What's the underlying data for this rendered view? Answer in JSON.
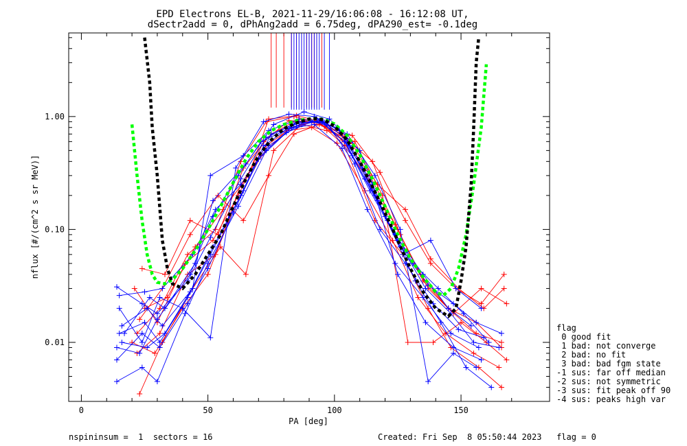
{
  "chart_data": {
    "type": "line",
    "title_line1": "EPD Electrons EL-B, 2021-11-29/16:06:08 - 16:12:08 UT,",
    "title_line2": "dSectr2add = 0, dPhAng2add = 6.75deg, dPA290_est=  -0.1deg",
    "xlabel": "PA [deg]",
    "ylabel": "nflux [#/(cm^2 s sr MeV)]",
    "xlim": [
      -5,
      185
    ],
    "ylim": [
      0.003,
      5.5
    ],
    "yscale": "log",
    "xticks": [
      0,
      50,
      100,
      150
    ],
    "xtick_labels": [
      "0",
      "50",
      "100",
      "150"
    ],
    "yticks": [
      0.01,
      0.1,
      1.0
    ],
    "ytick_labels": [
      "0.01",
      "0.10",
      "1.00"
    ],
    "colors": {
      "blue": "#0000ff",
      "red": "#ff0000",
      "black": "#000000",
      "green": "#00ff00"
    },
    "fit_black_dashed": [
      [
        25,
        5.0
      ],
      [
        27,
        2.0
      ],
      [
        28,
        0.8
      ],
      [
        30,
        0.3
      ],
      [
        32,
        0.08
      ],
      [
        34,
        0.045
      ],
      [
        36,
        0.033
      ],
      [
        40,
        0.03
      ],
      [
        45,
        0.04
      ],
      [
        50,
        0.06
      ],
      [
        55,
        0.09
      ],
      [
        60,
        0.16
      ],
      [
        65,
        0.28
      ],
      [
        70,
        0.45
      ],
      [
        75,
        0.62
      ],
      [
        80,
        0.78
      ],
      [
        85,
        0.88
      ],
      [
        90,
        0.95
      ],
      [
        93,
        0.96
      ],
      [
        96,
        0.93
      ],
      [
        100,
        0.82
      ],
      [
        105,
        0.62
      ],
      [
        110,
        0.4
      ],
      [
        115,
        0.24
      ],
      [
        120,
        0.14
      ],
      [
        125,
        0.08
      ],
      [
        130,
        0.045
      ],
      [
        135,
        0.028
      ],
      [
        140,
        0.02
      ],
      [
        145,
        0.017
      ],
      [
        148,
        0.02
      ],
      [
        150,
        0.035
      ],
      [
        152,
        0.07
      ],
      [
        154,
        0.25
      ],
      [
        155,
        0.8
      ],
      [
        156,
        3.0
      ],
      [
        157,
        5.0
      ]
    ],
    "fit_green_dashed": [
      [
        20,
        0.85
      ],
      [
        22,
        0.3
      ],
      [
        24,
        0.12
      ],
      [
        26,
        0.06
      ],
      [
        28,
        0.04
      ],
      [
        30,
        0.034
      ],
      [
        33,
        0.033
      ],
      [
        36,
        0.036
      ],
      [
        40,
        0.045
      ],
      [
        45,
        0.065
      ],
      [
        50,
        0.1
      ],
      [
        55,
        0.16
      ],
      [
        60,
        0.26
      ],
      [
        65,
        0.42
      ],
      [
        70,
        0.6
      ],
      [
        75,
        0.75
      ],
      [
        80,
        0.85
      ],
      [
        85,
        0.92
      ],
      [
        90,
        0.95
      ],
      [
        93,
        0.96
      ],
      [
        96,
        0.94
      ],
      [
        100,
        0.86
      ],
      [
        105,
        0.68
      ],
      [
        110,
        0.46
      ],
      [
        115,
        0.28
      ],
      [
        120,
        0.16
      ],
      [
        125,
        0.09
      ],
      [
        130,
        0.055
      ],
      [
        135,
        0.038
      ],
      [
        140,
        0.028
      ],
      [
        143,
        0.026
      ],
      [
        146,
        0.03
      ],
      [
        149,
        0.045
      ],
      [
        152,
        0.09
      ],
      [
        155,
        0.25
      ],
      [
        158,
        0.8
      ],
      [
        160,
        2.9
      ]
    ],
    "blue_traces": [
      [
        [
          14,
          0.031
        ],
        [
          24,
          0.022
        ],
        [
          30,
          0.018
        ],
        [
          42,
          0.035
        ],
        [
          51,
          0.085
        ],
        [
          63,
          0.28
        ],
        [
          73,
          0.65
        ],
        [
          85,
          0.88
        ],
        [
          95,
          0.9
        ],
        [
          106,
          0.55
        ],
        [
          116,
          0.2
        ],
        [
          126,
          0.07
        ],
        [
          137,
          0.032
        ],
        [
          147,
          0.022
        ],
        [
          156,
          0.015
        ],
        [
          166,
          0.012
        ]
      ],
      [
        [
          15,
          0.012
        ],
        [
          25,
          0.015
        ],
        [
          31,
          0.01
        ],
        [
          42,
          0.025
        ],
        [
          51,
          0.06
        ],
        [
          63,
          0.2
        ],
        [
          72,
          0.55
        ],
        [
          84,
          0.85
        ],
        [
          94,
          0.92
        ],
        [
          104,
          0.6
        ],
        [
          114,
          0.22
        ],
        [
          125,
          0.08
        ],
        [
          136,
          0.03
        ],
        [
          146,
          0.018
        ],
        [
          155,
          0.01
        ],
        [
          165,
          0.009
        ]
      ],
      [
        [
          14,
          0.0045
        ],
        [
          24,
          0.006
        ],
        [
          30,
          0.0045
        ],
        [
          41,
          0.018
        ],
        [
          50,
          0.05
        ],
        [
          62,
          0.16
        ],
        [
          73,
          0.5
        ],
        [
          83,
          0.8
        ],
        [
          93,
          0.95
        ],
        [
          105,
          0.7
        ],
        [
          116,
          0.3
        ],
        [
          126,
          0.1
        ],
        [
          137,
          0.0045
        ],
        [
          147,
          0.008
        ],
        [
          156,
          0.006
        ]
      ],
      [
        [
          15,
          0.02
        ],
        [
          24,
          0.01
        ],
        [
          31,
          0.025
        ],
        [
          40,
          0.02
        ],
        [
          51,
          0.011
        ],
        [
          61,
          0.35
        ],
        [
          72,
          0.9
        ],
        [
          82,
          1.05
        ],
        [
          92,
          1.0
        ],
        [
          102,
          0.75
        ],
        [
          112,
          0.28
        ],
        [
          124,
          0.09
        ],
        [
          135,
          0.04
        ],
        [
          145,
          0.02
        ],
        [
          154,
          0.014
        ]
      ],
      [
        [
          14,
          0.009
        ],
        [
          23,
          0.008
        ],
        [
          30,
          0.016
        ],
        [
          43,
          0.04
        ],
        [
          52,
          0.13
        ],
        [
          62,
          0.3
        ],
        [
          71,
          0.6
        ],
        [
          82,
          0.78
        ],
        [
          92,
          0.85
        ],
        [
          103,
          0.52
        ],
        [
          113,
          0.15
        ],
        [
          124,
          0.05
        ],
        [
          135,
          0.025
        ],
        [
          146,
          0.012
        ],
        [
          157,
          0.009
        ]
      ],
      [
        [
          16,
          0.014
        ],
        [
          26,
          0.02
        ],
        [
          32,
          0.014
        ],
        [
          44,
          0.03
        ],
        [
          51,
          0.3
        ],
        [
          64,
          0.45
        ],
        [
          74,
          0.75
        ],
        [
          86,
          0.95
        ],
        [
          96,
          0.88
        ],
        [
          107,
          0.45
        ],
        [
          117,
          0.18
        ],
        [
          127,
          0.06
        ],
        [
          138,
          0.08
        ],
        [
          148,
          0.03
        ],
        [
          158,
          0.02
        ]
      ],
      [
        [
          14,
          0.007
        ],
        [
          24,
          0.012
        ],
        [
          31,
          0.009
        ],
        [
          42,
          0.022
        ],
        [
          50,
          0.045
        ],
        [
          60,
          0.14
        ],
        [
          70,
          0.42
        ],
        [
          81,
          0.72
        ],
        [
          91,
          0.9
        ],
        [
          101,
          0.8
        ],
        [
          111,
          0.35
        ],
        [
          121,
          0.12
        ],
        [
          131,
          0.05
        ],
        [
          141,
          0.03
        ],
        [
          151,
          0.018
        ],
        [
          161,
          0.01
        ]
      ],
      [
        [
          17,
          0.012
        ],
        [
          27,
          0.025
        ],
        [
          33,
          0.02
        ],
        [
          45,
          0.05
        ],
        [
          52,
          0.18
        ],
        [
          65,
          0.38
        ],
        [
          76,
          0.85
        ],
        [
          88,
          1.1
        ],
        [
          98,
          0.95
        ],
        [
          110,
          0.5
        ],
        [
          120,
          0.13
        ],
        [
          132,
          0.035
        ],
        [
          142,
          0.015
        ],
        [
          152,
          0.006
        ],
        [
          162,
          0.004
        ]
      ],
      [
        [
          15,
          0.026
        ],
        [
          25,
          0.028
        ],
        [
          32,
          0.03
        ],
        [
          44,
          0.06
        ],
        [
          53,
          0.15
        ],
        [
          63,
          0.25
        ],
        [
          74,
          0.55
        ],
        [
          85,
          0.82
        ],
        [
          95,
          0.93
        ],
        [
          105,
          0.62
        ],
        [
          115,
          0.25
        ],
        [
          125,
          0.04
        ],
        [
          136,
          0.015
        ],
        [
          147,
          0.009
        ],
        [
          158,
          0.007
        ]
      ],
      [
        [
          16,
          0.01
        ],
        [
          26,
          0.009
        ],
        [
          33,
          0.012
        ],
        [
          43,
          0.028
        ],
        [
          52,
          0.07
        ],
        [
          64,
          0.22
        ],
        [
          75,
          0.7
        ],
        [
          86,
          0.9
        ],
        [
          97,
          0.88
        ],
        [
          108,
          0.38
        ],
        [
          118,
          0.1
        ],
        [
          128,
          0.05
        ],
        [
          139,
          0.022
        ],
        [
          149,
          0.013
        ],
        [
          159,
          0.011
        ]
      ]
    ],
    "red_traces": [
      [
        [
          24,
          0.045
        ],
        [
          33,
          0.04
        ],
        [
          43,
          0.12
        ],
        [
          54,
          0.09
        ],
        [
          64,
          0.35
        ],
        [
          75,
          0.7
        ],
        [
          86,
          0.95
        ],
        [
          96,
          0.82
        ],
        [
          107,
          0.68
        ],
        [
          118,
          0.32
        ],
        [
          128,
          0.12
        ],
        [
          138,
          0.05
        ],
        [
          148,
          0.03
        ],
        [
          158,
          0.022
        ],
        [
          167,
          0.04
        ]
      ],
      [
        [
          22,
          0.012
        ],
        [
          31,
          0.02
        ],
        [
          42,
          0.06
        ],
        [
          53,
          0.1
        ],
        [
          63,
          0.4
        ],
        [
          73,
          0.9
        ],
        [
          84,
          1.0
        ],
        [
          94,
          0.88
        ],
        [
          104,
          0.55
        ],
        [
          116,
          0.12
        ],
        [
          127,
          0.06
        ],
        [
          137,
          0.02
        ],
        [
          146,
          0.009
        ],
        [
          157,
          0.006
        ],
        [
          166,
          0.004
        ]
      ],
      [
        [
          23,
          0.0035
        ],
        [
          32,
          0.01
        ],
        [
          44,
          0.03
        ],
        [
          55,
          0.07
        ],
        [
          65,
          0.04
        ],
        [
          76,
          0.5
        ],
        [
          87,
          0.85
        ],
        [
          97,
          0.75
        ],
        [
          108,
          0.6
        ],
        [
          119,
          0.2
        ],
        [
          129,
          0.01
        ],
        [
          139,
          0.01
        ],
        [
          150,
          0.015
        ],
        [
          160,
          0.01
        ],
        [
          168,
          0.007
        ]
      ],
      [
        [
          21,
          0.03
        ],
        [
          30,
          0.015
        ],
        [
          41,
          0.05
        ],
        [
          52,
          0.08
        ],
        [
          62,
          0.2
        ],
        [
          72,
          0.6
        ],
        [
          82,
          0.92
        ],
        [
          92,
          0.9
        ],
        [
          103,
          0.7
        ],
        [
          114,
          0.3
        ],
        [
          125,
          0.1
        ],
        [
          135,
          0.035
        ],
        [
          145,
          0.02
        ],
        [
          156,
          0.015
        ],
        [
          166,
          0.009
        ]
      ],
      [
        [
          25,
          0.02
        ],
        [
          34,
          0.025
        ],
        [
          45,
          0.07
        ],
        [
          56,
          0.15
        ],
        [
          66,
          0.3
        ],
        [
          74,
          0.95
        ],
        [
          85,
          1.02
        ],
        [
          95,
          0.9
        ],
        [
          106,
          0.62
        ],
        [
          117,
          0.25
        ],
        [
          128,
          0.15
        ],
        [
          138,
          0.055
        ],
        [
          149,
          0.03
        ],
        [
          159,
          0.02
        ],
        [
          167,
          0.03
        ]
      ],
      [
        [
          20,
          0.01
        ],
        [
          29,
          0.008
        ],
        [
          40,
          0.02
        ],
        [
          50,
          0.04
        ],
        [
          60,
          0.15
        ],
        [
          71,
          0.45
        ],
        [
          81,
          0.75
        ],
        [
          91,
          0.8
        ],
        [
          101,
          0.58
        ],
        [
          112,
          0.22
        ],
        [
          123,
          0.08
        ],
        [
          133,
          0.025
        ],
        [
          144,
          0.012
        ],
        [
          155,
          0.008
        ],
        [
          165,
          0.006
        ]
      ],
      [
        [
          23,
          0.016
        ],
        [
          32,
          0.03
        ],
        [
          43,
          0.09
        ],
        [
          54,
          0.2
        ],
        [
          64,
          0.12
        ],
        [
          74,
          0.3
        ],
        [
          84,
          0.7
        ],
        [
          94,
          0.85
        ],
        [
          104,
          0.65
        ],
        [
          115,
          0.4
        ],
        [
          126,
          0.09
        ],
        [
          137,
          0.03
        ],
        [
          147,
          0.018
        ],
        [
          158,
          0.03
        ],
        [
          168,
          0.022
        ]
      ],
      [
        [
          22,
          0.008
        ],
        [
          31,
          0.012
        ],
        [
          42,
          0.04
        ],
        [
          53,
          0.06
        ],
        [
          63,
          0.25
        ],
        [
          73,
          0.55
        ],
        [
          83,
          0.8
        ],
        [
          93,
          0.92
        ],
        [
          103,
          0.62
        ],
        [
          113,
          0.28
        ],
        [
          124,
          0.11
        ],
        [
          134,
          0.04
        ],
        [
          145,
          0.02
        ],
        [
          156,
          0.012
        ],
        [
          166,
          0.01
        ]
      ]
    ],
    "spikes_red_x": [
      75,
      77,
      80,
      83,
      85,
      87,
      89,
      90,
      91,
      92,
      93,
      95
    ],
    "spikes_blue_x": [
      83,
      84,
      85,
      86,
      87,
      88,
      89,
      90,
      91,
      92,
      93,
      94,
      96,
      98
    ],
    "legend": {
      "title": "flag",
      "entries": [
        " 0 good fit",
        " 1 bad: not converge",
        " 2 bad: no fit",
        " 3 bad: bad fgm state",
        "-1 sus: far off median",
        "-2 sus: not symmetric",
        "-3 sus: fit peak off 90",
        "-4 sus: peaks high var"
      ]
    },
    "footer": {
      "left": "nspininsum =  1  sectors = 16",
      "right": "Created: Fri Sep  8 05:50:44 2023   flag = 0"
    }
  }
}
